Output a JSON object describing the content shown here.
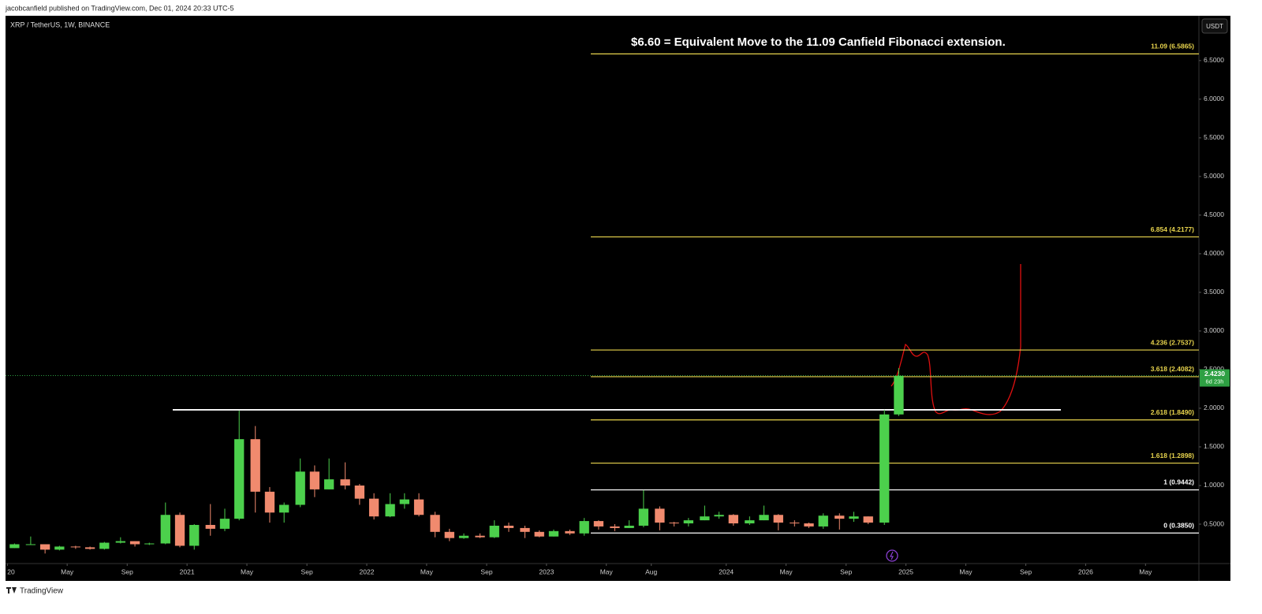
{
  "header": {
    "text": "jacobcanfield published on TradingView.com, Dec 01, 2024 20:33 UTC-5"
  },
  "footer": {
    "brand": "TradingView"
  },
  "chart_data": {
    "type": "candlestick",
    "symbol": "XRP / TetherUS, 1W, BINANCE",
    "currency_button": "USDT",
    "annotation": "$6.60 = Equivalent Move to the 11.09 Canfield Fibonacci extension.",
    "up_color": "#4cd04c",
    "down_color": "#f08a6e",
    "x": [
      2020.04,
      2020.13,
      2020.21,
      2020.29,
      2020.38,
      2020.46,
      2020.54,
      2020.63,
      2020.71,
      2020.79,
      2020.88,
      2020.96,
      2021.04,
      2021.13,
      2021.21,
      2021.29,
      2021.38,
      2021.46,
      2021.54,
      2021.63,
      2021.71,
      2021.79,
      2021.88,
      2021.96,
      2022.04,
      2022.13,
      2022.21,
      2022.29,
      2022.38,
      2022.46,
      2022.54,
      2022.63,
      2022.71,
      2022.79,
      2022.88,
      2022.96,
      2023.04,
      2023.13,
      2023.21,
      2023.29,
      2023.38,
      2023.46,
      2023.54,
      2023.63,
      2023.71,
      2023.79,
      2023.88,
      2023.96,
      2024.04,
      2024.13,
      2024.21,
      2024.29,
      2024.38,
      2024.46,
      2024.54,
      2024.63,
      2024.71,
      2024.79,
      2024.88,
      2024.96
    ],
    "open": [
      0.19,
      0.24,
      0.24,
      0.17,
      0.21,
      0.2,
      0.18,
      0.26,
      0.28,
      0.24,
      0.25,
      0.62,
      0.22,
      0.49,
      0.44,
      0.57,
      1.6,
      0.92,
      0.65,
      0.75,
      1.18,
      0.95,
      1.08,
      1.0,
      0.83,
      0.6,
      0.76,
      0.82,
      0.62,
      0.4,
      0.32,
      0.35,
      0.33,
      0.48,
      0.45,
      0.4,
      0.34,
      0.41,
      0.38,
      0.54,
      0.47,
      0.45,
      0.48,
      0.7,
      0.52,
      0.51,
      0.55,
      0.6,
      0.62,
      0.51,
      0.55,
      0.62,
      0.52,
      0.51,
      0.47,
      0.61,
      0.57,
      0.6,
      0.52,
      1.92
    ],
    "high": [
      0.25,
      0.34,
      0.24,
      0.22,
      0.22,
      0.21,
      0.27,
      0.33,
      0.28,
      0.26,
      0.78,
      0.65,
      0.5,
      0.76,
      0.7,
      1.97,
      1.77,
      0.98,
      0.78,
      1.35,
      1.26,
      1.35,
      1.3,
      1.02,
      0.9,
      0.9,
      0.9,
      0.9,
      0.66,
      0.44,
      0.38,
      0.38,
      0.55,
      0.52,
      0.48,
      0.42,
      0.43,
      0.43,
      0.58,
      0.55,
      0.5,
      0.55,
      0.94,
      0.73,
      0.53,
      0.58,
      0.74,
      0.66,
      0.63,
      0.6,
      0.74,
      0.63,
      0.55,
      0.52,
      0.64,
      0.64,
      0.66,
      0.6,
      1.98,
      2.52
    ],
    "low": [
      0.19,
      0.23,
      0.12,
      0.16,
      0.18,
      0.17,
      0.17,
      0.25,
      0.21,
      0.23,
      0.24,
      0.2,
      0.17,
      0.35,
      0.41,
      0.55,
      0.65,
      0.52,
      0.52,
      0.72,
      0.85,
      0.95,
      0.95,
      0.75,
      0.56,
      0.59,
      0.7,
      0.6,
      0.33,
      0.28,
      0.31,
      0.32,
      0.32,
      0.4,
      0.32,
      0.33,
      0.34,
      0.36,
      0.35,
      0.43,
      0.41,
      0.45,
      0.46,
      0.42,
      0.47,
      0.47,
      0.55,
      0.57,
      0.48,
      0.49,
      0.55,
      0.42,
      0.47,
      0.45,
      0.44,
      0.43,
      0.53,
      0.5,
      0.49,
      1.9
    ],
    "close": [
      0.24,
      0.24,
      0.17,
      0.21,
      0.2,
      0.18,
      0.26,
      0.28,
      0.24,
      0.25,
      0.62,
      0.22,
      0.49,
      0.44,
      0.57,
      1.6,
      0.92,
      0.65,
      0.75,
      1.18,
      0.95,
      1.08,
      1.0,
      0.83,
      0.6,
      0.76,
      0.82,
      0.62,
      0.4,
      0.32,
      0.35,
      0.33,
      0.48,
      0.45,
      0.4,
      0.34,
      0.41,
      0.38,
      0.54,
      0.47,
      0.45,
      0.48,
      0.7,
      0.52,
      0.51,
      0.55,
      0.6,
      0.62,
      0.51,
      0.55,
      0.62,
      0.52,
      0.51,
      0.47,
      0.61,
      0.57,
      0.6,
      0.52,
      1.92,
      2.42
    ],
    "xlim": [
      2019.99,
      2026.63
    ],
    "ylim": [
      -0.01,
      7.08
    ],
    "xticks": [
      {
        "value": 2020,
        "label": "20"
      },
      {
        "value": 2020.333,
        "label": "May"
      },
      {
        "value": 2020.667,
        "label": "Sep"
      },
      2021,
      {
        "value": 2021.333,
        "label": "May"
      },
      {
        "value": 2021.667,
        "label": "Sep"
      },
      2022,
      {
        "value": 2022.333,
        "label": "May"
      },
      {
        "value": 2022.667,
        "label": "Sep"
      },
      2023,
      {
        "value": 2023.333,
        "label": "May"
      },
      {
        "value": 2023.583,
        "label": "Aug"
      },
      2024,
      {
        "value": 2024.333,
        "label": "May"
      },
      {
        "value": 2024.667,
        "label": "Sep"
      },
      2025,
      {
        "value": 2025.333,
        "label": "May"
      },
      {
        "value": 2025.667,
        "label": "Sep"
      },
      2026,
      {
        "value": 2026.333,
        "label": "May"
      }
    ],
    "yticks": [
      {
        "value": 0.5,
        "label": "0.5000"
      },
      {
        "value": 1,
        "label": "1.0000"
      },
      {
        "value": 1.5,
        "label": "1.5000"
      },
      {
        "value": 2,
        "label": "2.0000"
      },
      {
        "value": 2.5,
        "label": "2.5000"
      },
      {
        "value": 3,
        "label": "3.0000"
      },
      {
        "value": 3.5,
        "label": "3.5000"
      },
      {
        "value": 4,
        "label": "4.0000"
      },
      {
        "value": 4.5,
        "label": "4.5000"
      },
      {
        "value": 5,
        "label": "5.0000"
      },
      {
        "value": 5.5,
        "label": "5.5000"
      },
      {
        "value": 6,
        "label": "6.0000"
      },
      {
        "value": 6.5,
        "label": "6.5000"
      }
    ],
    "fib_levels": [
      {
        "label": "11.09 (6.5865)",
        "value": 6.5865,
        "color": "#e8d44d"
      },
      {
        "label": "6.854 (4.2177)",
        "value": 4.2177,
        "color": "#e8d44d"
      },
      {
        "label": "4.236 (2.7537)",
        "value": 2.7537,
        "color": "#e8d44d"
      },
      {
        "label": "3.618 (2.4082)",
        "value": 2.4082,
        "color": "#e8d44d"
      },
      {
        "label": "2.618 (1.8490)",
        "value": 1.849,
        "color": "#e8d44d"
      },
      {
        "label": "1.618 (1.2898)",
        "value": 1.2898,
        "color": "#e8d44d"
      },
      {
        "label": "1 (0.9442)",
        "value": 0.9442,
        "color": "#ffffff"
      },
      {
        "label": "0 (0.3850)",
        "value": 0.385,
        "color": "#ffffff"
      }
    ],
    "resistance": {
      "value": 1.98,
      "color": "#ffffff"
    },
    "last_price": {
      "value": 2.423,
      "label": "2.4230",
      "countdown": "6d 23h",
      "color": "#2ea043"
    }
  }
}
